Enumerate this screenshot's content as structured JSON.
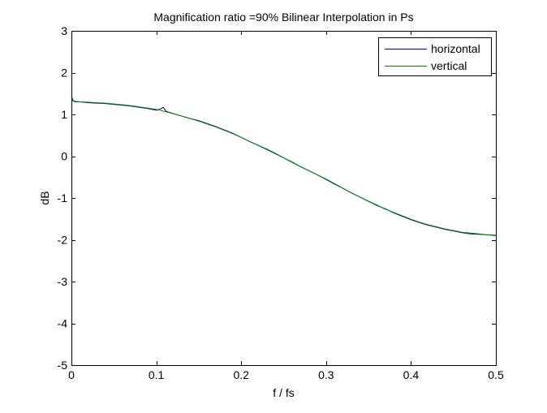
{
  "chart_data": {
    "type": "line",
    "title": "Magnification ratio =90% Bilinear Interpolation in Ps",
    "xlabel": "f / fs",
    "ylabel": "dB",
    "xlim": [
      0,
      0.5
    ],
    "ylim": [
      -5,
      3
    ],
    "xticks": [
      0,
      0.1,
      0.2,
      0.3,
      0.4,
      0.5
    ],
    "xtick_labels": [
      "0",
      "0.1",
      "0.2",
      "0.3",
      "0.4",
      "0.5"
    ],
    "yticks": [
      3,
      2,
      1,
      0,
      -1,
      -2,
      -3,
      -4,
      -5
    ],
    "ytick_labels": [
      "3",
      "2",
      "1",
      "0",
      "-1",
      "-2",
      "-3",
      "-4",
      "-5"
    ],
    "grid": false,
    "legend_position": "top-right",
    "series": [
      {
        "name": "horizontal",
        "color": "#00007f",
        "x": [
          0,
          0.002,
          0.005,
          0.01,
          0.02,
          0.03,
          0.04,
          0.05,
          0.06,
          0.07,
          0.08,
          0.09,
          0.1,
          0.105,
          0.108,
          0.112,
          0.12,
          0.13,
          0.14,
          0.15,
          0.16,
          0.17,
          0.18,
          0.19,
          0.2,
          0.21,
          0.22,
          0.23,
          0.24,
          0.25,
          0.26,
          0.27,
          0.28,
          0.29,
          0.3,
          0.31,
          0.32,
          0.33,
          0.34,
          0.35,
          0.36,
          0.37,
          0.38,
          0.39,
          0.4,
          0.41,
          0.42,
          0.43,
          0.44,
          0.45,
          0.46,
          0.47,
          0.48,
          0.49,
          0.5
        ],
        "y": [
          1.38,
          1.32,
          1.3,
          1.3,
          1.28,
          1.27,
          1.26,
          1.24,
          1.22,
          1.2,
          1.17,
          1.14,
          1.1,
          1.13,
          1.17,
          1.07,
          1.02,
          0.96,
          0.9,
          0.85,
          0.78,
          0.71,
          0.63,
          0.55,
          0.45,
          0.35,
          0.26,
          0.17,
          0.07,
          -0.04,
          -0.14,
          -0.25,
          -0.35,
          -0.45,
          -0.55,
          -0.66,
          -0.77,
          -0.88,
          -0.98,
          -1.08,
          -1.18,
          -1.26,
          -1.36,
          -1.44,
          -1.52,
          -1.59,
          -1.65,
          -1.7,
          -1.75,
          -1.79,
          -1.83,
          -1.86,
          -1.87,
          -1.88,
          -1.9
        ]
      },
      {
        "name": "vertical",
        "color": "#007f00",
        "x": [
          0,
          0.002,
          0.005,
          0.01,
          0.02,
          0.03,
          0.04,
          0.05,
          0.06,
          0.07,
          0.08,
          0.09,
          0.1,
          0.11,
          0.12,
          0.13,
          0.14,
          0.15,
          0.16,
          0.17,
          0.18,
          0.19,
          0.2,
          0.21,
          0.22,
          0.23,
          0.24,
          0.25,
          0.26,
          0.27,
          0.28,
          0.29,
          0.3,
          0.31,
          0.32,
          0.33,
          0.34,
          0.35,
          0.36,
          0.37,
          0.38,
          0.39,
          0.4,
          0.41,
          0.42,
          0.43,
          0.44,
          0.45,
          0.46,
          0.47,
          0.48,
          0.49,
          0.5
        ],
        "y": [
          1.45,
          1.33,
          1.31,
          1.3,
          1.29,
          1.28,
          1.27,
          1.25,
          1.23,
          1.21,
          1.18,
          1.15,
          1.12,
          1.07,
          1.02,
          0.96,
          0.9,
          0.84,
          0.77,
          0.7,
          0.62,
          0.54,
          0.45,
          0.35,
          0.26,
          0.16,
          0.06,
          -0.04,
          -0.15,
          -0.25,
          -0.35,
          -0.45,
          -0.56,
          -0.67,
          -0.77,
          -0.88,
          -0.98,
          -1.08,
          -1.17,
          -1.27,
          -1.35,
          -1.43,
          -1.51,
          -1.58,
          -1.64,
          -1.69,
          -1.74,
          -1.78,
          -1.82,
          -1.84,
          -1.86,
          -1.88,
          -1.89
        ]
      }
    ]
  }
}
